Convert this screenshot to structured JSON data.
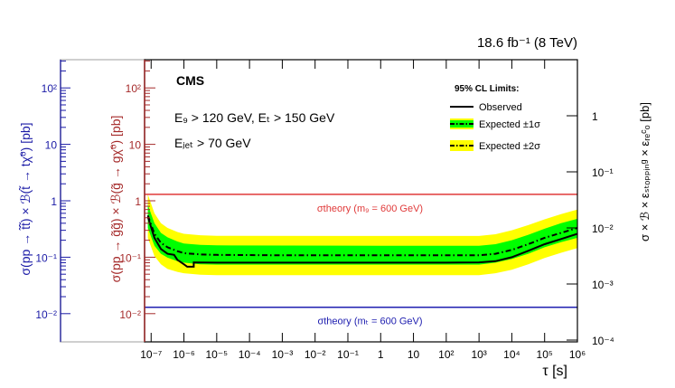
{
  "chart_data": {
    "type": "line",
    "lumi_label": "18.6 fb⁻¹ (8 TeV)",
    "experiment": "CMS",
    "cuts": {
      "line1": "E₉ > 120 GeV, Eₜ > 150 GeV",
      "line2": "Eⱼₑₜ > 70 GeV"
    },
    "legend": {
      "title": "95% CL Limits:",
      "observed": "Observed",
      "expected1": "Expected ±1σ",
      "expected2": "Expected ±2σ"
    },
    "xlabel": "τ [s]",
    "x_scale": "log",
    "xlim_exp": [
      -7.2,
      6
    ],
    "x_tick_labels": [
      "10⁻⁷",
      "10⁻⁶",
      "10⁻⁵",
      "10⁻⁴",
      "10⁻³",
      "10⁻²",
      "10⁻¹",
      "1",
      "10",
      "10²",
      "10³",
      "10⁴",
      "10⁵",
      "10⁶"
    ],
    "axes": {
      "main": {
        "label": "σ(pp → g̃g̃) × ℬ(g̃ → gχ̃⁰)  [pb]",
        "scale": "log",
        "ylim_exp": [
          -2.5,
          2.5
        ],
        "tick_labels": [
          "10⁻²",
          "10⁻¹",
          "1",
          "10",
          "10²"
        ],
        "color": "#a52a2a"
      },
      "stop": {
        "label": "σ(pp → t̃t̃) × ℬ(t̃ → tχ̃⁰)  [pb]",
        "scale": "log",
        "tick_labels": [
          "10⁻²",
          "10⁻¹",
          "1",
          "10",
          "10²"
        ],
        "color": "#1a1aa6"
      },
      "right": {
        "label": "σ × ℬ × εₛₜₒₚₚᵢₙᵍ × εᵣₑᶜₒ  [pb]",
        "scale": "log",
        "tick_labels": [
          "1",
          "10⁻¹",
          "10⁻²",
          "10⁻³",
          "10⁻⁴"
        ],
        "color": "#000000"
      }
    },
    "theory_lines": [
      {
        "name": "gluino",
        "label": "σtheory (m₉ = 600 GeV)",
        "value_pb": 1.3,
        "color": "#e03a3a"
      },
      {
        "name": "stop",
        "label": "σtheory (mₜ = 600 GeV)",
        "value_pb": 0.013,
        "color": "#2020b0"
      }
    ],
    "series": [
      {
        "name": "Observed",
        "style": "solid",
        "points": [
          [
            -7.1,
            0.52
          ],
          [
            -6.9,
            0.22
          ],
          [
            -6.7,
            0.14
          ],
          [
            -6.5,
            0.115
          ],
          [
            -6.3,
            0.11
          ],
          [
            -6.2,
            0.09
          ],
          [
            -6.0,
            0.075
          ],
          [
            -5.9,
            0.068
          ],
          [
            -5.7,
            0.068
          ],
          [
            -5.7,
            0.081
          ],
          [
            -5.0,
            0.08
          ],
          [
            -3,
            0.08
          ],
          [
            0,
            0.08
          ],
          [
            2,
            0.08
          ],
          [
            3,
            0.081
          ],
          [
            3.5,
            0.085
          ],
          [
            4,
            0.1
          ],
          [
            4.5,
            0.13
          ],
          [
            5,
            0.17
          ],
          [
            5.5,
            0.21
          ],
          [
            6,
            0.26
          ]
        ]
      },
      {
        "name": "Expected",
        "style": "dash-dot",
        "points": [
          [
            -7.1,
            0.55
          ],
          [
            -6.9,
            0.26
          ],
          [
            -6.7,
            0.18
          ],
          [
            -6.5,
            0.15
          ],
          [
            -6.2,
            0.128
          ],
          [
            -6,
            0.118
          ],
          [
            -5.5,
            0.112
          ],
          [
            -5,
            0.11
          ],
          [
            -3,
            0.108
          ],
          [
            0,
            0.108
          ],
          [
            3,
            0.108
          ],
          [
            3.5,
            0.115
          ],
          [
            4,
            0.135
          ],
          [
            4.5,
            0.17
          ],
          [
            5,
            0.22
          ],
          [
            5.5,
            0.27
          ],
          [
            6,
            0.33
          ]
        ]
      },
      {
        "name": "Expected ±1σ",
        "style": "band",
        "lower": [
          [
            -7.1,
            0.33
          ],
          [
            -6.9,
            0.16
          ],
          [
            -6.7,
            0.115
          ],
          [
            -6.5,
            0.098
          ],
          [
            -6.2,
            0.085
          ],
          [
            -6,
            0.08
          ],
          [
            -5.5,
            0.075
          ],
          [
            -5,
            0.074
          ],
          [
            0,
            0.074
          ],
          [
            3,
            0.074
          ],
          [
            3.5,
            0.08
          ],
          [
            4,
            0.093
          ],
          [
            4.5,
            0.115
          ],
          [
            5,
            0.15
          ],
          [
            5.5,
            0.185
          ],
          [
            6,
            0.22
          ]
        ],
        "upper": [
          [
            -7.1,
            0.85
          ],
          [
            -6.9,
            0.4
          ],
          [
            -6.7,
            0.27
          ],
          [
            -6.5,
            0.225
          ],
          [
            -6.2,
            0.19
          ],
          [
            -6,
            0.175
          ],
          [
            -5.5,
            0.165
          ],
          [
            -5,
            0.162
          ],
          [
            0,
            0.16
          ],
          [
            3,
            0.16
          ],
          [
            3.5,
            0.17
          ],
          [
            4,
            0.2
          ],
          [
            4.5,
            0.25
          ],
          [
            5,
            0.32
          ],
          [
            5.5,
            0.4
          ],
          [
            6,
            0.48
          ]
        ]
      },
      {
        "name": "Expected ±2σ",
        "style": "band",
        "lower": [
          [
            -7.1,
            0.22
          ],
          [
            -6.9,
            0.105
          ],
          [
            -6.7,
            0.075
          ],
          [
            -6.5,
            0.062
          ],
          [
            -6.2,
            0.055
          ],
          [
            -6,
            0.052
          ],
          [
            -5.5,
            0.049
          ],
          [
            -5,
            0.048
          ],
          [
            0,
            0.048
          ],
          [
            3,
            0.048
          ],
          [
            3.5,
            0.052
          ],
          [
            4,
            0.06
          ],
          [
            4.5,
            0.075
          ],
          [
            5,
            0.097
          ],
          [
            5.5,
            0.12
          ],
          [
            6,
            0.145
          ]
        ],
        "upper": [
          [
            -7.1,
            1.3
          ],
          [
            -6.9,
            0.6
          ],
          [
            -6.7,
            0.4
          ],
          [
            -6.5,
            0.33
          ],
          [
            -6.2,
            0.28
          ],
          [
            -6,
            0.26
          ],
          [
            -5.5,
            0.245
          ],
          [
            -5,
            0.24
          ],
          [
            0,
            0.238
          ],
          [
            3,
            0.238
          ],
          [
            3.5,
            0.255
          ],
          [
            4,
            0.3
          ],
          [
            4.5,
            0.37
          ],
          [
            5,
            0.47
          ],
          [
            5.5,
            0.58
          ],
          [
            6,
            0.7
          ]
        ]
      }
    ]
  }
}
